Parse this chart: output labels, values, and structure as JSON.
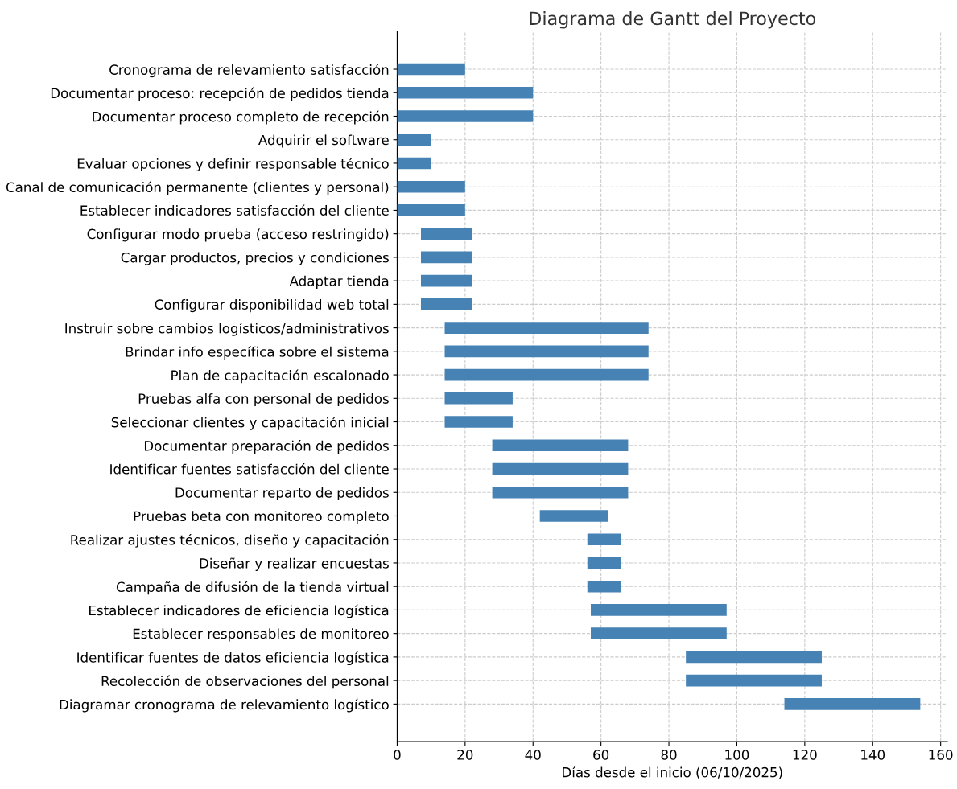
{
  "chart_data": {
    "type": "bar",
    "orientation": "horizontal",
    "title": "Diagrama de Gantt del Proyecto",
    "xlabel": "Días desde el inicio (06/10/2025)",
    "categories": [
      "Cronograma de relevamiento satisfacción",
      "Documentar proceso: recepción de pedidos tienda",
      "Documentar proceso completo de recepción",
      "Adquirir el software",
      "Evaluar opciones y definir responsable técnico",
      "Canal de comunicación permanente (clientes y personal)",
      "Establecer indicadores satisfacción del cliente",
      "Configurar modo prueba (acceso restringido)",
      "Cargar productos, precios y condiciones",
      "Adaptar tienda",
      "Configurar disponibilidad web total",
      "Instruir sobre cambios logísticos/administrativos",
      "Brindar info específica sobre el sistema",
      "Plan de capacitación escalonado",
      "Pruebas alfa con personal de pedidos",
      "Seleccionar clientes y capacitación inicial",
      "Documentar preparación de pedidos",
      "Identificar fuentes satisfacción del cliente",
      "Documentar reparto de pedidos",
      "Pruebas beta con monitoreo completo",
      "Realizar ajustes técnicos, diseño y capacitación",
      "Diseñar y realizar encuestas",
      "Campaña de difusión de la tienda virtual",
      "Establecer indicadores de eficiencia logística",
      "Establecer responsables de monitoreo",
      "Identificar fuentes de datos eficiencia logística",
      "Recolección de observaciones del personal",
      "Diagramar cronograma de relevamiento logístico"
    ],
    "base": [
      0,
      0,
      0,
      0,
      0,
      0,
      0,
      7,
      7,
      7,
      7,
      14,
      14,
      14,
      14,
      14,
      28,
      28,
      28,
      42,
      56,
      56,
      56,
      57,
      57,
      85,
      85,
      114
    ],
    "values": [
      20,
      40,
      40,
      10,
      10,
      20,
      20,
      15,
      15,
      15,
      15,
      60,
      60,
      60,
      20,
      20,
      40,
      40,
      40,
      20,
      10,
      10,
      10,
      40,
      40,
      40,
      40,
      40
    ],
    "color": "#4682b4",
    "xlim": [
      0,
      162
    ],
    "xticks": [
      0,
      20,
      40,
      60,
      80,
      100,
      120,
      140,
      160
    ],
    "grid": true
  }
}
